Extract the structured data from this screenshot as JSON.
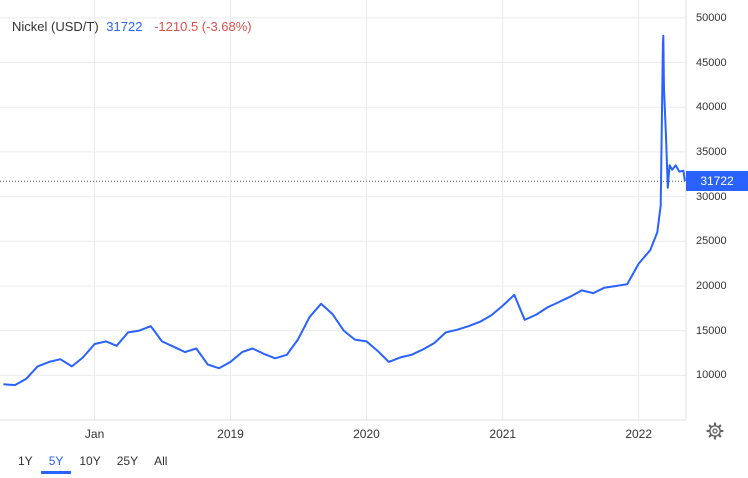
{
  "header": {
    "name": "Nickel (USD/T)",
    "price": "31722",
    "change": "-1210.5 (-3.68%)"
  },
  "price_tag": "31722",
  "range_buttons": [
    {
      "label": "1Y",
      "active": false
    },
    {
      "label": "5Y",
      "active": true
    },
    {
      "label": "10Y",
      "active": false
    },
    {
      "label": "25Y",
      "active": false
    },
    {
      "label": "All",
      "active": false
    }
  ],
  "colors": {
    "line": "#2962ff",
    "change": "#e0504f",
    "grid": "#ebebeb"
  },
  "icons": {
    "settings": "gear-icon"
  },
  "chart_data": {
    "type": "line",
    "title": "Nickel (USD/T)",
    "xlabel": "",
    "ylabel": "",
    "x_tick_labels": [
      "Jan",
      "2019",
      "2020",
      "2021",
      "2022"
    ],
    "y_tick_labels": [
      "10000",
      "15000",
      "20000",
      "25000",
      "30000",
      "35000",
      "40000",
      "45000",
      "50000"
    ],
    "ylim": [
      5000,
      52000
    ],
    "grid": true,
    "last_value": 31722,
    "series": [
      {
        "name": "Nickel",
        "x": [
          "2017-05-01",
          "2017-06-01",
          "2017-07-01",
          "2017-08-01",
          "2017-09-01",
          "2017-10-01",
          "2017-11-01",
          "2017-12-01",
          "2018-01-01",
          "2018-02-01",
          "2018-03-01",
          "2018-04-01",
          "2018-05-01",
          "2018-06-01",
          "2018-07-01",
          "2018-08-01",
          "2018-09-01",
          "2018-10-01",
          "2018-11-01",
          "2018-12-01",
          "2019-01-01",
          "2019-02-01",
          "2019-03-01",
          "2019-04-01",
          "2019-05-01",
          "2019-06-01",
          "2019-07-01",
          "2019-08-01",
          "2019-09-01",
          "2019-10-01",
          "2019-11-01",
          "2019-12-01",
          "2020-01-01",
          "2020-02-01",
          "2020-03-01",
          "2020-04-01",
          "2020-05-01",
          "2020-06-01",
          "2020-07-01",
          "2020-08-01",
          "2020-09-01",
          "2020-10-01",
          "2020-11-01",
          "2020-12-01",
          "2021-01-01",
          "2021-02-01",
          "2021-03-01",
          "2021-04-01",
          "2021-05-01",
          "2021-06-01",
          "2021-07-01",
          "2021-08-01",
          "2021-09-01",
          "2021-10-01",
          "2021-11-01",
          "2021-12-01",
          "2022-01-01",
          "2022-02-01",
          "2022-02-20",
          "2022-03-01",
          "2022-03-07",
          "2022-03-08",
          "2022-03-10",
          "2022-03-15",
          "2022-03-20",
          "2022-03-25",
          "2022-04-01",
          "2022-04-10",
          "2022-04-20",
          "2022-05-01",
          "2022-05-05"
        ],
        "y": [
          9000,
          8900,
          9600,
          11000,
          11500,
          11800,
          11000,
          12000,
          13500,
          13800,
          13300,
          14800,
          15000,
          15500,
          13800,
          13200,
          12600,
          13000,
          11200,
          10800,
          11500,
          12600,
          13000,
          12400,
          11900,
          12300,
          14000,
          16500,
          18000,
          16900,
          15000,
          14000,
          13800,
          12700,
          11500,
          12000,
          12300,
          12900,
          13600,
          14800,
          15100,
          15500,
          16000,
          16700,
          17800,
          19000,
          16200,
          16800,
          17600,
          18200,
          18800,
          19500,
          19200,
          19800,
          20000,
          20200,
          22500,
          24000,
          26000,
          29000,
          47000,
          48000,
          42000,
          37000,
          31000,
          33500,
          33000,
          33500,
          32800,
          32900,
          31722
        ]
      }
    ]
  }
}
